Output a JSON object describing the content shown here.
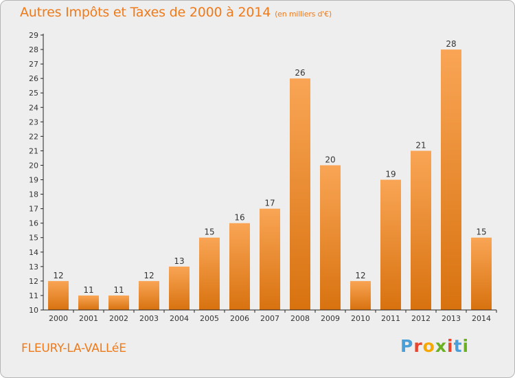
{
  "title": "Autres Impôts et Taxes de 2000 à 2014",
  "subtitle": "(en milliers d'€)",
  "location": "FLEURY-LA-VALLéE",
  "logo": {
    "letters": [
      "P",
      "r",
      "o",
      "x",
      "i",
      "t",
      "i"
    ],
    "colors": [
      "#4a9fd8",
      "#e8452c",
      "#f7a800",
      "#6ab023",
      "#e8452c",
      "#4a9fd8",
      "#6ab023"
    ]
  },
  "colors": {
    "accent": "#ef7a1a",
    "bar_top": "#f9a555",
    "bar_bottom": "#d8720f",
    "background": "#eeeeee"
  },
  "chart_data": {
    "type": "bar",
    "title": "Autres Impôts et Taxes de 2000 à 2014",
    "subtitle": "(en milliers d'€)",
    "categories": [
      "2000",
      "2001",
      "2002",
      "2003",
      "2004",
      "2005",
      "2006",
      "2007",
      "2008",
      "2009",
      "2010",
      "2011",
      "2012",
      "2013",
      "2014"
    ],
    "values": [
      12,
      11,
      11,
      12,
      13,
      15,
      16,
      17,
      26,
      20,
      12,
      19,
      21,
      28,
      15
    ],
    "ylim": [
      10,
      29
    ],
    "yticks": [
      10,
      11,
      12,
      13,
      14,
      15,
      16,
      17,
      18,
      19,
      20,
      21,
      22,
      23,
      24,
      25,
      26,
      27,
      28,
      29
    ],
    "grid": false,
    "legend": "none"
  }
}
